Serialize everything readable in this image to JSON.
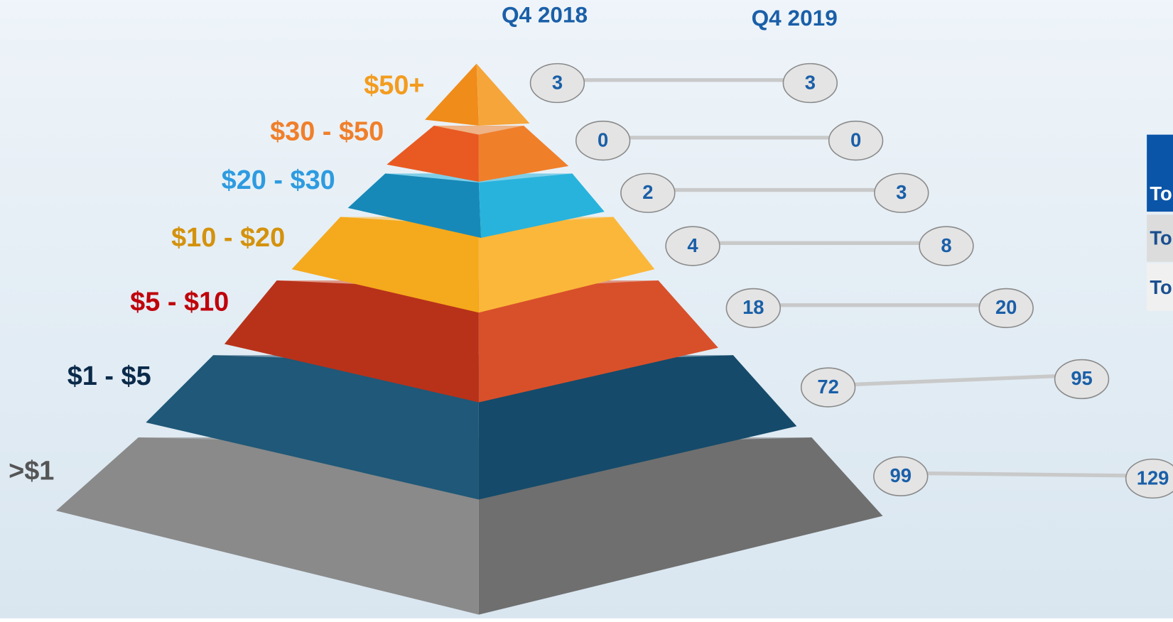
{
  "columns": [
    "Q4 2018",
    "Q4 2019"
  ],
  "tiers": [
    {
      "label": "$50+",
      "q4_2018": "3",
      "q4_2019": "3"
    },
    {
      "label": "$30 - $50",
      "q4_2018": "0",
      "q4_2019": "0"
    },
    {
      "label": "$20 - $30",
      "q4_2018": "2",
      "q4_2019": "3"
    },
    {
      "label": "$10 - $20",
      "q4_2018": "4",
      "q4_2019": "8"
    },
    {
      "label": "$5 - $10",
      "q4_2018": "18",
      "q4_2019": "20"
    },
    {
      "label": "$1 - $5",
      "q4_2018": "72",
      "q4_2019": "95"
    },
    {
      "label": ">$1",
      "q4_2018": "99",
      "q4_2019": "129"
    }
  ],
  "table": {
    "rows": [
      [
        "To"
      ],
      [
        "To"
      ],
      [
        "To"
      ]
    ]
  }
}
